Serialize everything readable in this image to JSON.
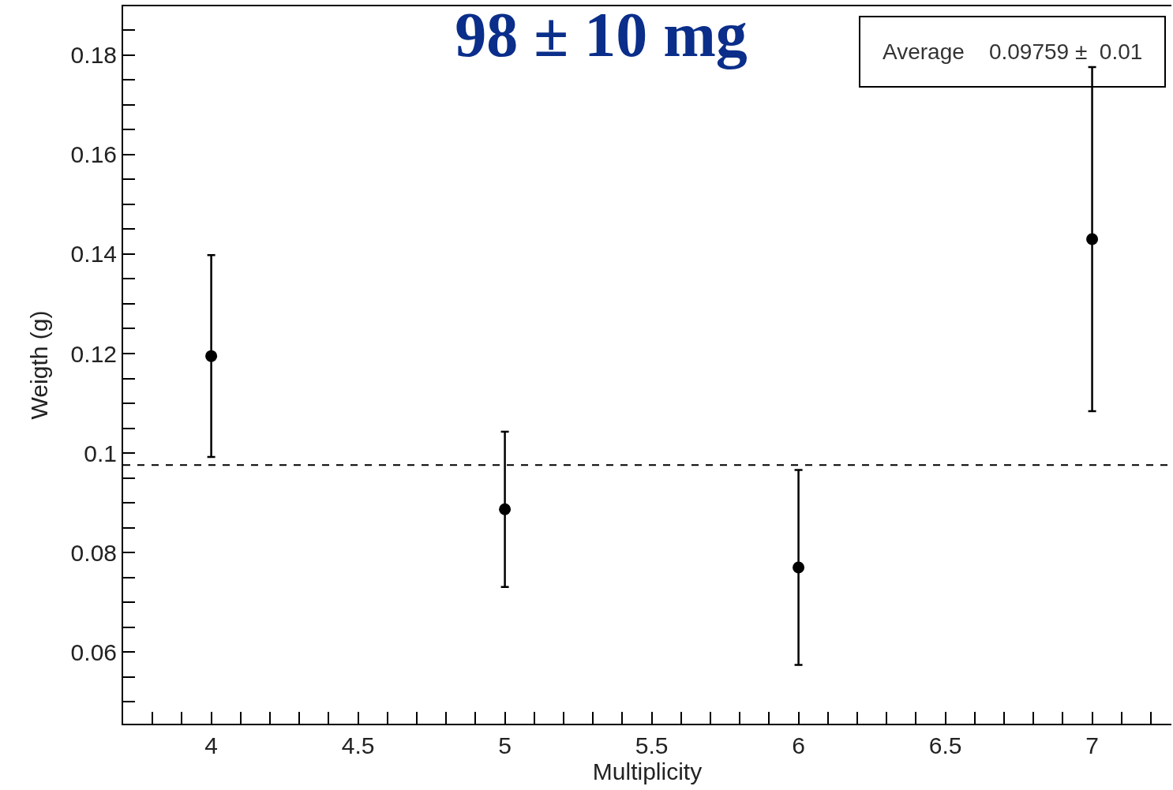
{
  "chart_data": {
    "type": "scatter",
    "title": "98 ± 10 mg",
    "xlabel": "Multiplicity",
    "ylabel": "Weigth (g)",
    "x": [
      4,
      5,
      6,
      7
    ],
    "series": [
      {
        "color": "#000000",
        "values": [
          0.1195,
          0.0887,
          0.077,
          0.143
        ],
        "errors": [
          0.0203,
          0.0156,
          0.0196,
          0.0346
        ]
      }
    ],
    "marker": "circle",
    "xlim": [
      3.7,
      7.27
    ],
    "ylim": [
      0.0456,
      0.1898
    ],
    "xticks": [
      {
        "value": 3.8,
        "label": null
      },
      {
        "value": 3.9,
        "label": null
      },
      4,
      {
        "value": 4.1,
        "label": null
      },
      {
        "value": 4.2,
        "label": null
      },
      {
        "value": 4.3,
        "label": null
      },
      {
        "value": 4.4,
        "label": null
      },
      4.5,
      {
        "value": 4.6,
        "label": null
      },
      {
        "value": 4.7,
        "label": null
      },
      {
        "value": 4.8,
        "label": null
      },
      {
        "value": 4.9,
        "label": null
      },
      5,
      {
        "value": 5.1,
        "label": null
      },
      {
        "value": 5.2,
        "label": null
      },
      {
        "value": 5.3,
        "label": null
      },
      {
        "value": 5.4,
        "label": null
      },
      5.5,
      {
        "value": 5.6,
        "label": null
      },
      {
        "value": 5.7,
        "label": null
      },
      {
        "value": 5.8,
        "label": null
      },
      {
        "value": 5.9,
        "label": null
      },
      6,
      {
        "value": 6.1,
        "label": null
      },
      {
        "value": 6.2,
        "label": null
      },
      {
        "value": 6.3,
        "label": null
      },
      {
        "value": 6.4,
        "label": null
      },
      6.5,
      {
        "value": 6.6,
        "label": null
      },
      {
        "value": 6.7,
        "label": null
      },
      {
        "value": 6.8,
        "label": null
      },
      {
        "value": 6.9,
        "label": null
      },
      7,
      {
        "value": 7.1,
        "label": null
      },
      {
        "value": 7.2,
        "label": null
      }
    ],
    "yticks": [
      {
        "value": 0.05,
        "label": null
      },
      {
        "value": 0.055,
        "label": null
      },
      0.06,
      {
        "value": 0.065,
        "label": null
      },
      {
        "value": 0.07,
        "label": null
      },
      {
        "value": 0.075,
        "label": null
      },
      0.08,
      {
        "value": 0.085,
        "label": null
      },
      {
        "value": 0.09,
        "label": null
      },
      {
        "value": 0.095,
        "label": null
      },
      {
        "value": 0.1,
        "label": "0.1"
      },
      {
        "value": 0.105,
        "label": null
      },
      {
        "value": 0.11,
        "label": null
      },
      {
        "value": 0.115,
        "label": null
      },
      0.12,
      {
        "value": 0.125,
        "label": null
      },
      {
        "value": 0.13,
        "label": null
      },
      {
        "value": 0.135,
        "label": null
      },
      0.14,
      {
        "value": 0.145,
        "label": null
      },
      {
        "value": 0.15,
        "label": null
      },
      {
        "value": 0.155,
        "label": null
      },
      0.16,
      {
        "value": 0.165,
        "label": null
      },
      {
        "value": 0.17,
        "label": null
      },
      {
        "value": 0.175,
        "label": null
      },
      0.18,
      {
        "value": 0.185,
        "label": null
      }
    ],
    "annotations": [
      "Average    0.09759 ±  0.01"
    ],
    "ref_lines": [
      {
        "axis": "y",
        "value": 0.09759,
        "color": "#000000",
        "line_style": "dashed"
      }
    ]
  }
}
